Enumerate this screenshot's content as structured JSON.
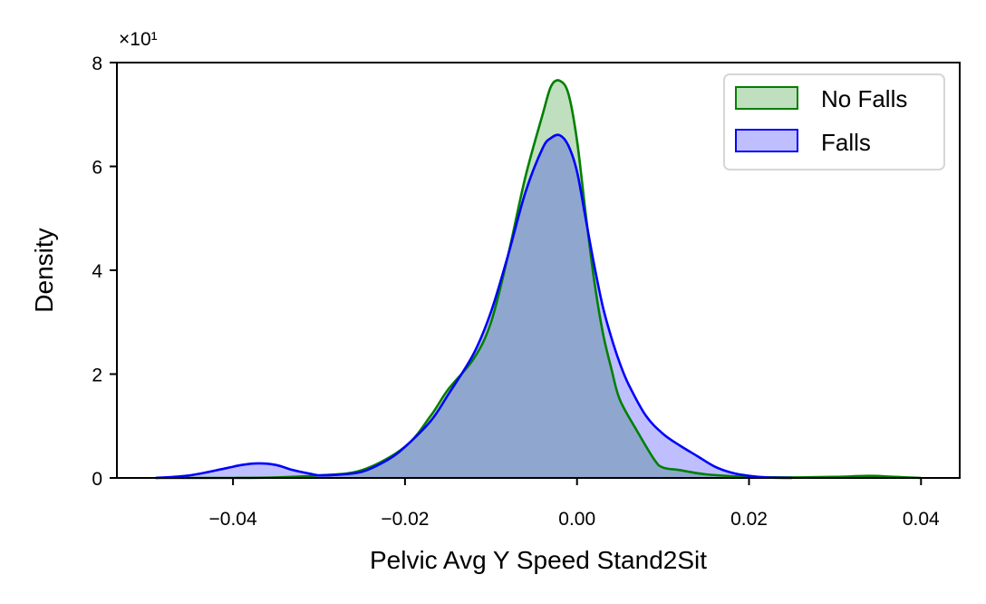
{
  "chart_data": {
    "type": "area",
    "xlabel": "Pelvic Avg Y Speed Stand2Sit",
    "ylabel": "Density",
    "y_offset_label": "×10¹",
    "xlim": [
      -0.0535,
      0.0445
    ],
    "ylim": [
      0,
      8
    ],
    "xticks": [
      -0.04,
      -0.02,
      0.0,
      0.02,
      0.04
    ],
    "xtick_labels": [
      "−0.04",
      "−0.02",
      "0.00",
      "0.02",
      "0.04"
    ],
    "yticks": [
      0,
      2,
      4,
      6,
      8
    ],
    "ytick_labels": [
      "0",
      "2",
      "4",
      "6",
      "8"
    ],
    "grid": false,
    "legend_position": "top-right",
    "series": [
      {
        "name": "No Falls",
        "color": "#008000",
        "fill": "rgba(0,128,0,0.25)",
        "x": [
          -0.049,
          -0.04,
          -0.035,
          -0.03,
          -0.025,
          -0.02,
          -0.017,
          -0.015,
          -0.012,
          -0.01,
          -0.008,
          -0.006,
          -0.004,
          -0.003,
          -0.002,
          -0.001,
          0.0,
          0.001,
          0.002,
          0.003,
          0.004,
          0.005,
          0.007,
          0.009,
          0.01,
          0.012,
          0.015,
          0.02,
          0.025,
          0.03,
          0.034,
          0.037,
          0.04
        ],
        "y": [
          0,
          0,
          0.01,
          0.05,
          0.15,
          0.6,
          1.2,
          1.7,
          2.3,
          3.0,
          4.3,
          5.8,
          7.0,
          7.55,
          7.65,
          7.4,
          6.5,
          5.1,
          3.8,
          2.8,
          2.1,
          1.5,
          0.9,
          0.35,
          0.2,
          0.15,
          0.07,
          0.02,
          0.01,
          0.02,
          0.04,
          0.02,
          0
        ]
      },
      {
        "name": "Falls",
        "color": "#0000ff",
        "fill": "rgba(0,0,255,0.25)",
        "x": [
          -0.049,
          -0.045,
          -0.041,
          -0.039,
          -0.037,
          -0.035,
          -0.033,
          -0.031,
          -0.03,
          -0.028,
          -0.025,
          -0.022,
          -0.02,
          -0.017,
          -0.015,
          -0.012,
          -0.01,
          -0.008,
          -0.006,
          -0.004,
          -0.003,
          -0.002,
          -0.001,
          0.0,
          0.001,
          0.002,
          0.003,
          0.004,
          0.005,
          0.006,
          0.008,
          0.01,
          0.012,
          0.014,
          0.016,
          0.018,
          0.02,
          0.022,
          0.025
        ],
        "y": [
          0,
          0.05,
          0.18,
          0.25,
          0.28,
          0.25,
          0.15,
          0.08,
          0.05,
          0.06,
          0.12,
          0.35,
          0.6,
          1.1,
          1.6,
          2.4,
          3.2,
          4.3,
          5.5,
          6.35,
          6.55,
          6.6,
          6.4,
          5.9,
          5.0,
          4.1,
          3.3,
          2.7,
          2.2,
          1.8,
          1.2,
          0.85,
          0.62,
          0.42,
          0.22,
          0.1,
          0.04,
          0.01,
          0
        ]
      }
    ]
  }
}
